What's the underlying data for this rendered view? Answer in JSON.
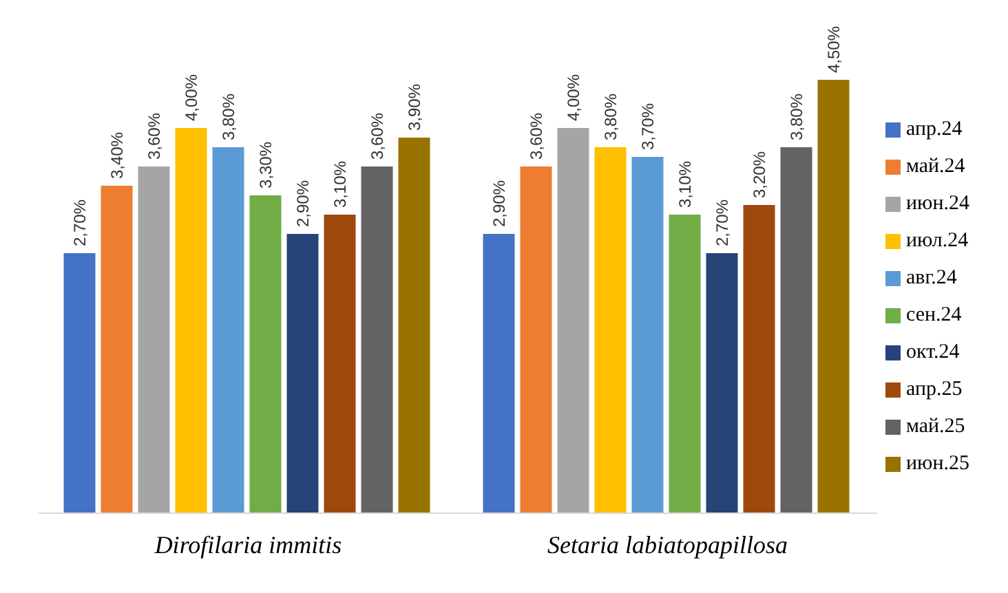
{
  "chart_data": {
    "type": "bar",
    "categories": [
      "Dirofilaria immitis",
      "Setaria labiatopapillosa"
    ],
    "legend": "right",
    "grid": false,
    "series": [
      {
        "name": "апр.24",
        "color": "#4472c4",
        "values": [
          2.7,
          2.9
        ],
        "value_labels": [
          "2,70%",
          "2,90%"
        ]
      },
      {
        "name": "май.24",
        "color": "#ed7d31",
        "values": [
          3.4,
          3.6
        ],
        "value_labels": [
          "3,40%",
          "3,60%"
        ]
      },
      {
        "name": "июн.24",
        "color": "#a5a5a5",
        "values": [
          3.6,
          4.0
        ],
        "value_labels": [
          "3,60%",
          "4,00%"
        ]
      },
      {
        "name": "июл.24",
        "color": "#ffc000",
        "values": [
          4.0,
          3.8
        ],
        "value_labels": [
          "4,00%",
          "3,80%"
        ]
      },
      {
        "name": "авг.24",
        "color": "#5b9bd5",
        "values": [
          3.8,
          3.7
        ],
        "value_labels": [
          "3,80%",
          "3,70%"
        ]
      },
      {
        "name": "сен.24",
        "color": "#70ad47",
        "values": [
          3.3,
          3.1
        ],
        "value_labels": [
          "3,30%",
          "3,10%"
        ]
      },
      {
        "name": "окт.24",
        "color": "#264478",
        "values": [
          2.9,
          2.7
        ],
        "value_labels": [
          "2,90%",
          "2,70%"
        ]
      },
      {
        "name": "апр.25",
        "color": "#9e480e",
        "values": [
          3.1,
          3.2
        ],
        "value_labels": [
          "3,10%",
          "3,20%"
        ]
      },
      {
        "name": "май.25",
        "color": "#636363",
        "values": [
          3.6,
          3.8
        ],
        "value_labels": [
          "3,60%",
          "3,80%"
        ]
      },
      {
        "name": "июн.25",
        "color": "#997300",
        "values": [
          3.9,
          4.5
        ],
        "value_labels": [
          "3,90%",
          "4,50%"
        ]
      }
    ]
  }
}
